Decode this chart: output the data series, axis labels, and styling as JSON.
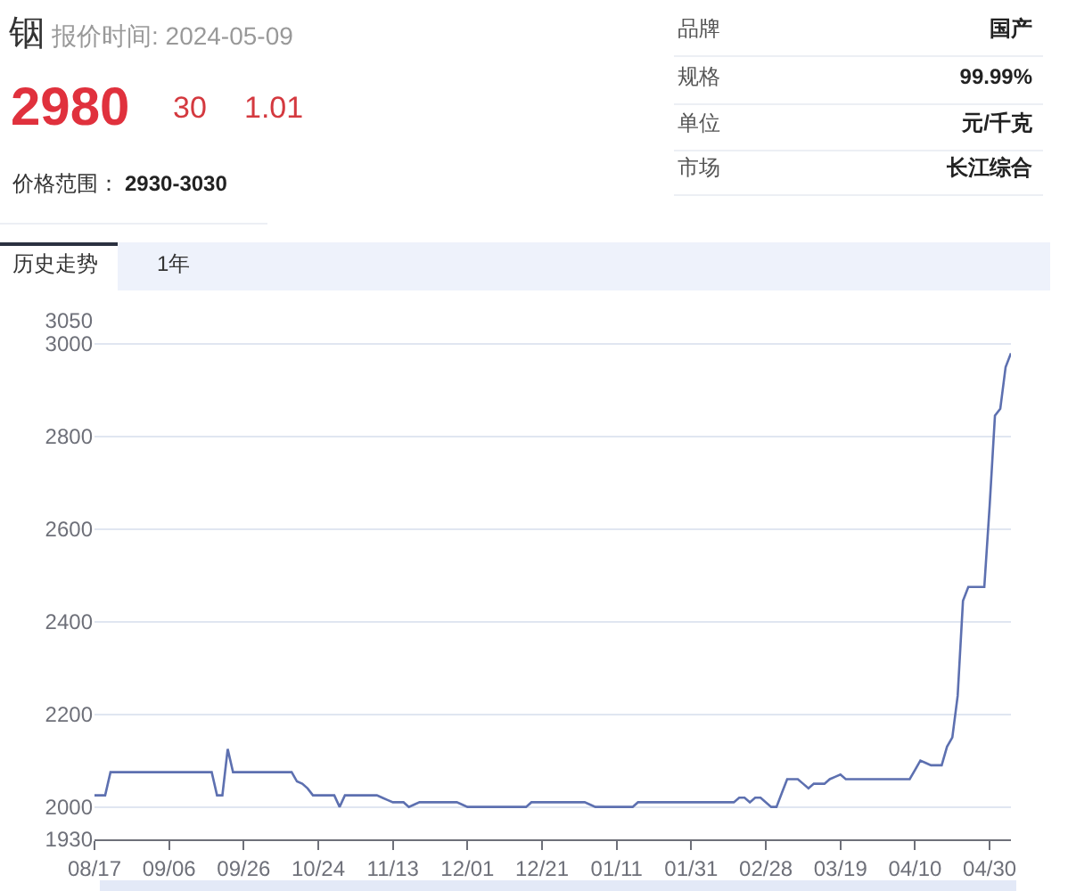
{
  "chart_data": {
    "type": "line",
    "title": "铟",
    "subtitle": "报价时间: 2024-05-09",
    "annotations": [
      "2980",
      "30",
      "1.01",
      "价格范围：",
      "2930-3030",
      "品牌",
      "国产",
      "规格",
      "99.99%",
      "单位",
      "元/千克",
      "市场",
      "长江综合",
      "历史走势",
      "1年"
    ],
    "categories": [
      "08/17",
      null,
      null,
      null,
      null,
      null,
      null,
      null,
      null,
      null,
      null,
      null,
      null,
      null,
      "09/06",
      null,
      null,
      null,
      null,
      null,
      null,
      null,
      null,
      null,
      null,
      null,
      null,
      null,
      "09/26",
      null,
      null,
      null,
      null,
      null,
      null,
      null,
      null,
      null,
      null,
      null,
      null,
      null,
      "10/24",
      null,
      null,
      null,
      null,
      null,
      null,
      null,
      null,
      null,
      null,
      null,
      null,
      null,
      "11/13",
      null,
      null,
      null,
      null,
      null,
      null,
      null,
      null,
      null,
      null,
      null,
      null,
      null,
      "12/01",
      null,
      null,
      null,
      null,
      null,
      null,
      null,
      null,
      null,
      null,
      null,
      null,
      null,
      "12/21",
      null,
      null,
      null,
      null,
      null,
      null,
      null,
      null,
      null,
      null,
      null,
      null,
      null,
      "01/11",
      null,
      null,
      null,
      null,
      null,
      null,
      null,
      null,
      null,
      null,
      null,
      null,
      null,
      "01/31",
      null,
      null,
      null,
      null,
      null,
      null,
      null,
      null,
      null,
      null,
      null,
      null,
      null,
      "02/28",
      null,
      null,
      null,
      null,
      null,
      null,
      null,
      null,
      null,
      null,
      null,
      null,
      null,
      "03/19",
      null,
      null,
      null,
      null,
      null,
      null,
      null,
      null,
      null,
      null,
      null,
      null,
      null,
      "04/10",
      null,
      null,
      null,
      null,
      null,
      null,
      null,
      null,
      null,
      null,
      null,
      null,
      null,
      "04/30",
      null,
      null,
      null,
      null
    ],
    "values": [
      2025,
      2025,
      2025,
      2075,
      2075,
      2075,
      2075,
      2075,
      2075,
      2075,
      2075,
      2075,
      2075,
      2075,
      2075,
      2075,
      2075,
      2075,
      2075,
      2075,
      2075,
      2075,
      2075,
      2025,
      2025,
      2125,
      2075,
      2075,
      2075,
      2075,
      2075,
      2075,
      2075,
      2075,
      2075,
      2075,
      2075,
      2075,
      2055,
      2050,
      2040,
      2025,
      2025,
      2025,
      2025,
      2025,
      2000,
      2025,
      2025,
      2025,
      2025,
      2025,
      2025,
      2025,
      2020,
      2015,
      2010,
      2010,
      2010,
      2000,
      2005,
      2010,
      2010,
      2010,
      2010,
      2010,
      2010,
      2010,
      2010,
      2005,
      2000,
      2000,
      2000,
      2000,
      2000,
      2000,
      2000,
      2000,
      2000,
      2000,
      2000,
      2000,
      2010,
      2010,
      2010,
      2010,
      2010,
      2010,
      2010,
      2010,
      2010,
      2010,
      2010,
      2005,
      2000,
      2000,
      2000,
      2000,
      2000,
      2000,
      2000,
      2000,
      2010,
      2010,
      2010,
      2010,
      2010,
      2010,
      2010,
      2010,
      2010,
      2010,
      2010,
      2010,
      2010,
      2010,
      2010,
      2010,
      2010,
      2010,
      2010,
      2020,
      2020,
      2010,
      2020,
      2020,
      2010,
      2000,
      2000,
      2030,
      2060,
      2060,
      2060,
      2050,
      2040,
      2050,
      2050,
      2050,
      2060,
      2065,
      2070,
      2060,
      2060,
      2060,
      2060,
      2060,
      2060,
      2060,
      2060,
      2060,
      2060,
      2060,
      2060,
      2060,
      2080,
      2100,
      2095,
      2090,
      2090,
      2090,
      2130,
      2150,
      2240,
      2445,
      2475,
      2475,
      2475,
      2475,
      2650,
      2845,
      2860,
      2950,
      2980
    ],
    "color": "#5d70b0",
    "ylim": [
      1930,
      3050
    ],
    "yticks": [
      1930,
      2000,
      2200,
      2400,
      2600,
      2800,
      3000,
      3050
    ],
    "grid": "y"
  }
}
